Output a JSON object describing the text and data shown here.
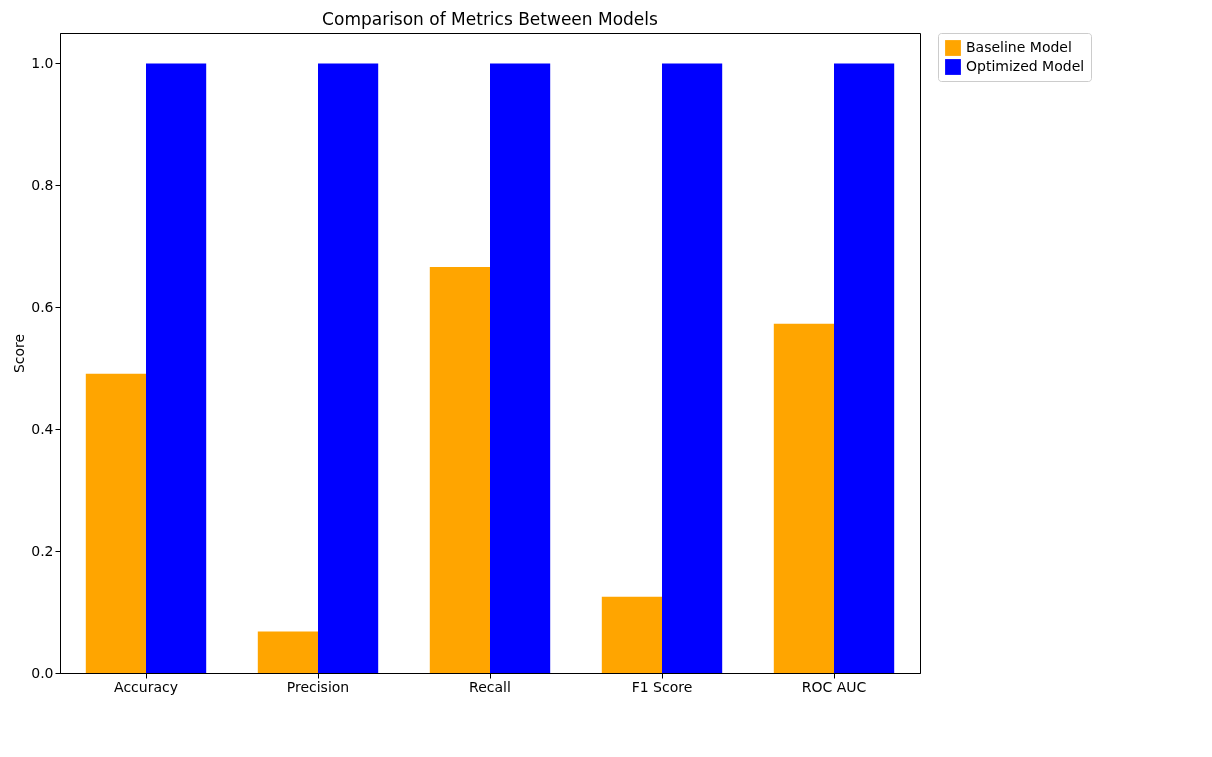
{
  "chart_data": {
    "type": "bar",
    "title": "Comparison of Metrics Between Models",
    "ylabel": "Score",
    "categories": [
      "Accuracy",
      "Precision",
      "Recall",
      "F1 Score",
      "ROC AUC"
    ],
    "series": [
      {
        "name": "Baseline Model",
        "color": "#ffa500",
        "values": [
          0.491,
          0.068,
          0.666,
          0.125,
          0.573
        ]
      },
      {
        "name": "Optimized Model",
        "color": "#0000ff",
        "values": [
          1.0,
          1.0,
          1.0,
          1.0,
          1.0
        ]
      }
    ],
    "ylim": [
      0,
      1.05
    ],
    "yticks": [
      {
        "value": 0,
        "label": "0.0"
      },
      0.2,
      0.4,
      0.6,
      0.8,
      {
        "value": 1,
        "label": "1.0"
      }
    ],
    "grid": false,
    "legend": "top right"
  }
}
